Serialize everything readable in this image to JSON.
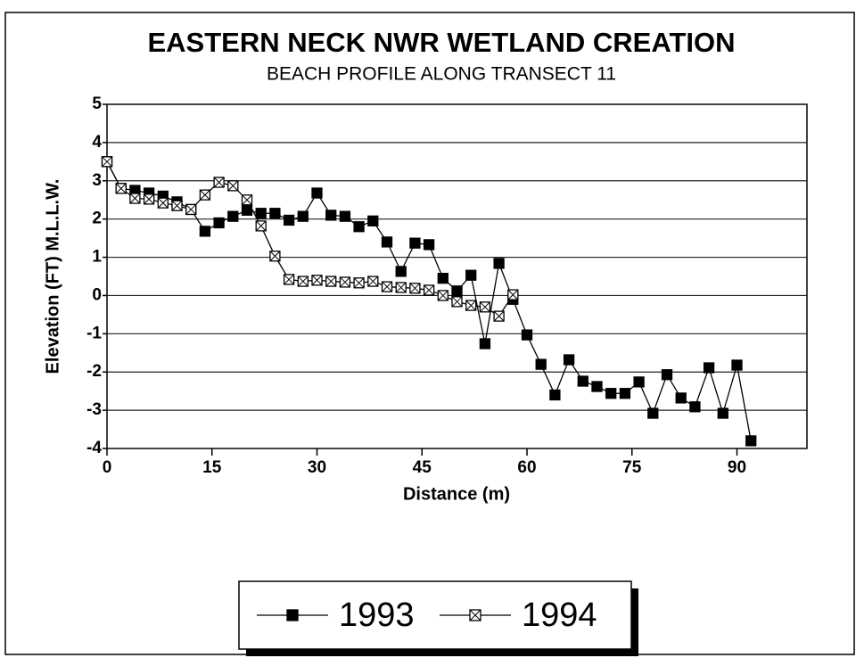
{
  "chart_data": {
    "type": "line",
    "title": "EASTERN NECK NWR WETLAND CREATION",
    "subtitle": "BEACH PROFILE ALONG TRANSECT 11",
    "x_label": "Distance (m)",
    "y_label": "Elevation (FT) M.L.L.W.",
    "x": [
      0,
      2,
      4,
      6,
      8,
      10,
      12,
      14,
      16,
      18,
      20,
      22,
      24,
      26,
      28,
      30,
      32,
      34,
      36,
      38,
      40,
      42,
      44,
      46,
      48,
      50,
      52,
      54,
      56,
      58,
      60,
      62,
      64,
      66,
      68,
      70,
      72,
      74,
      76,
      78,
      80,
      82,
      84,
      86,
      88,
      90,
      92
    ],
    "series": [
      {
        "name": "1993",
        "color": "#000000",
        "marker": "filled-square",
        "values": [
          3.5,
          2.8,
          2.75,
          2.68,
          2.6,
          2.45,
          2.25,
          1.68,
          1.9,
          2.07,
          2.23,
          2.15,
          2.15,
          1.97,
          2.07,
          2.68,
          2.1,
          2.07,
          1.8,
          1.95,
          1.4,
          0.63,
          1.37,
          1.33,
          0.45,
          0.12,
          0.53,
          -1.26,
          0.84,
          -0.1,
          -1.03,
          -1.8,
          -2.6,
          -1.68,
          -2.24,
          -2.38,
          -2.56,
          -2.56,
          -2.26,
          -3.08,
          -2.07,
          -2.68,
          -2.91,
          -1.89,
          -3.08,
          -1.82,
          -3.8
        ]
      },
      {
        "name": "1994",
        "color": "#000000",
        "marker": "crossed-square",
        "values": [
          3.5,
          2.8,
          2.54,
          2.52,
          2.42,
          2.35,
          2.25,
          2.63,
          2.96,
          2.87,
          2.5,
          1.82,
          1.03,
          0.42,
          0.37,
          0.4,
          0.37,
          0.35,
          0.33,
          0.37,
          0.23,
          0.21,
          0.19,
          0.14,
          0,
          -0.16,
          -0.26,
          -0.3,
          -0.54,
          0.02,
          null,
          null,
          null,
          null,
          null,
          null,
          null,
          null,
          null,
          null,
          null,
          null,
          null,
          null,
          null,
          null,
          null
        ]
      }
    ],
    "xlim": [
      0,
      100
    ],
    "xticks": [
      0,
      15,
      30,
      45,
      60,
      75,
      90
    ],
    "ylim": [
      -4,
      5
    ],
    "yticks": [
      -4,
      -3,
      -2,
      -1,
      0,
      1,
      2,
      3,
      4,
      5
    ],
    "grid": true,
    "legend": "bottom"
  }
}
